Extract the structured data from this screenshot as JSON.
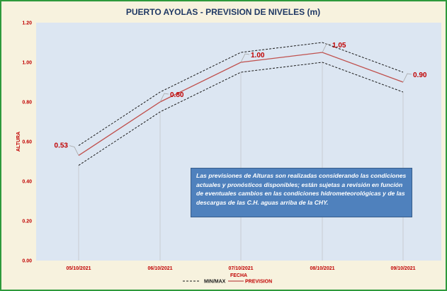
{
  "chart_data": {
    "type": "line",
    "title": "PUERTO AYOLAS - PREVISION DE NIVELES (m)",
    "xlabel": "FECHA",
    "ylabel": "ALTURA",
    "categories": [
      "05/10/2021",
      "06/10/2021",
      "07/10/2021",
      "08/10/2021",
      "09/10/2021"
    ],
    "ylim": [
      0,
      1.2
    ],
    "yticks": [
      "0.00",
      "0.20",
      "0.40",
      "0.60",
      "0.80",
      "1.00",
      "1.20"
    ],
    "grid": false,
    "legend_position": "bottom",
    "series": [
      {
        "name": "MIN/MAX",
        "style": "dashed",
        "color": "#1a1a1a",
        "values": [
          0.48,
          0.75,
          0.95,
          1.0,
          0.85
        ]
      },
      {
        "name": "MIN/MAX",
        "style": "dashed",
        "color": "#1a1a1a",
        "values": [
          0.58,
          0.85,
          1.05,
          1.1,
          0.95
        ]
      },
      {
        "name": "PREVISION",
        "style": "solid",
        "color": "#c0504d",
        "values": [
          0.53,
          0.8,
          1.0,
          1.05,
          0.9
        ]
      }
    ],
    "data_labels": [
      "0.53",
      "0.80",
      "1.00",
      "1.05",
      "0.90"
    ],
    "legend": [
      {
        "label": "MIN/MAX",
        "style": "dashed",
        "color": "#1a1a1a"
      },
      {
        "label": "PREVISION",
        "style": "solid",
        "color": "#c0504d"
      }
    ],
    "annotation": "Las previsiones de Alturas son realizadas considerando las condiciones actuales y pronósticos disponibles;  están sujetas a revisión en función de eventuales cambios en las condiciones hidrometeorológicas y de las descargas de las C.H. aguas arriba de la CHY."
  },
  "colors": {
    "plot_background": "#dce6f2",
    "frame_border": "#2e9a3c",
    "page_background": "#f7f2de",
    "title": "#1f3864",
    "tick_text": "#c00000",
    "note_background": "#4f81bd"
  }
}
